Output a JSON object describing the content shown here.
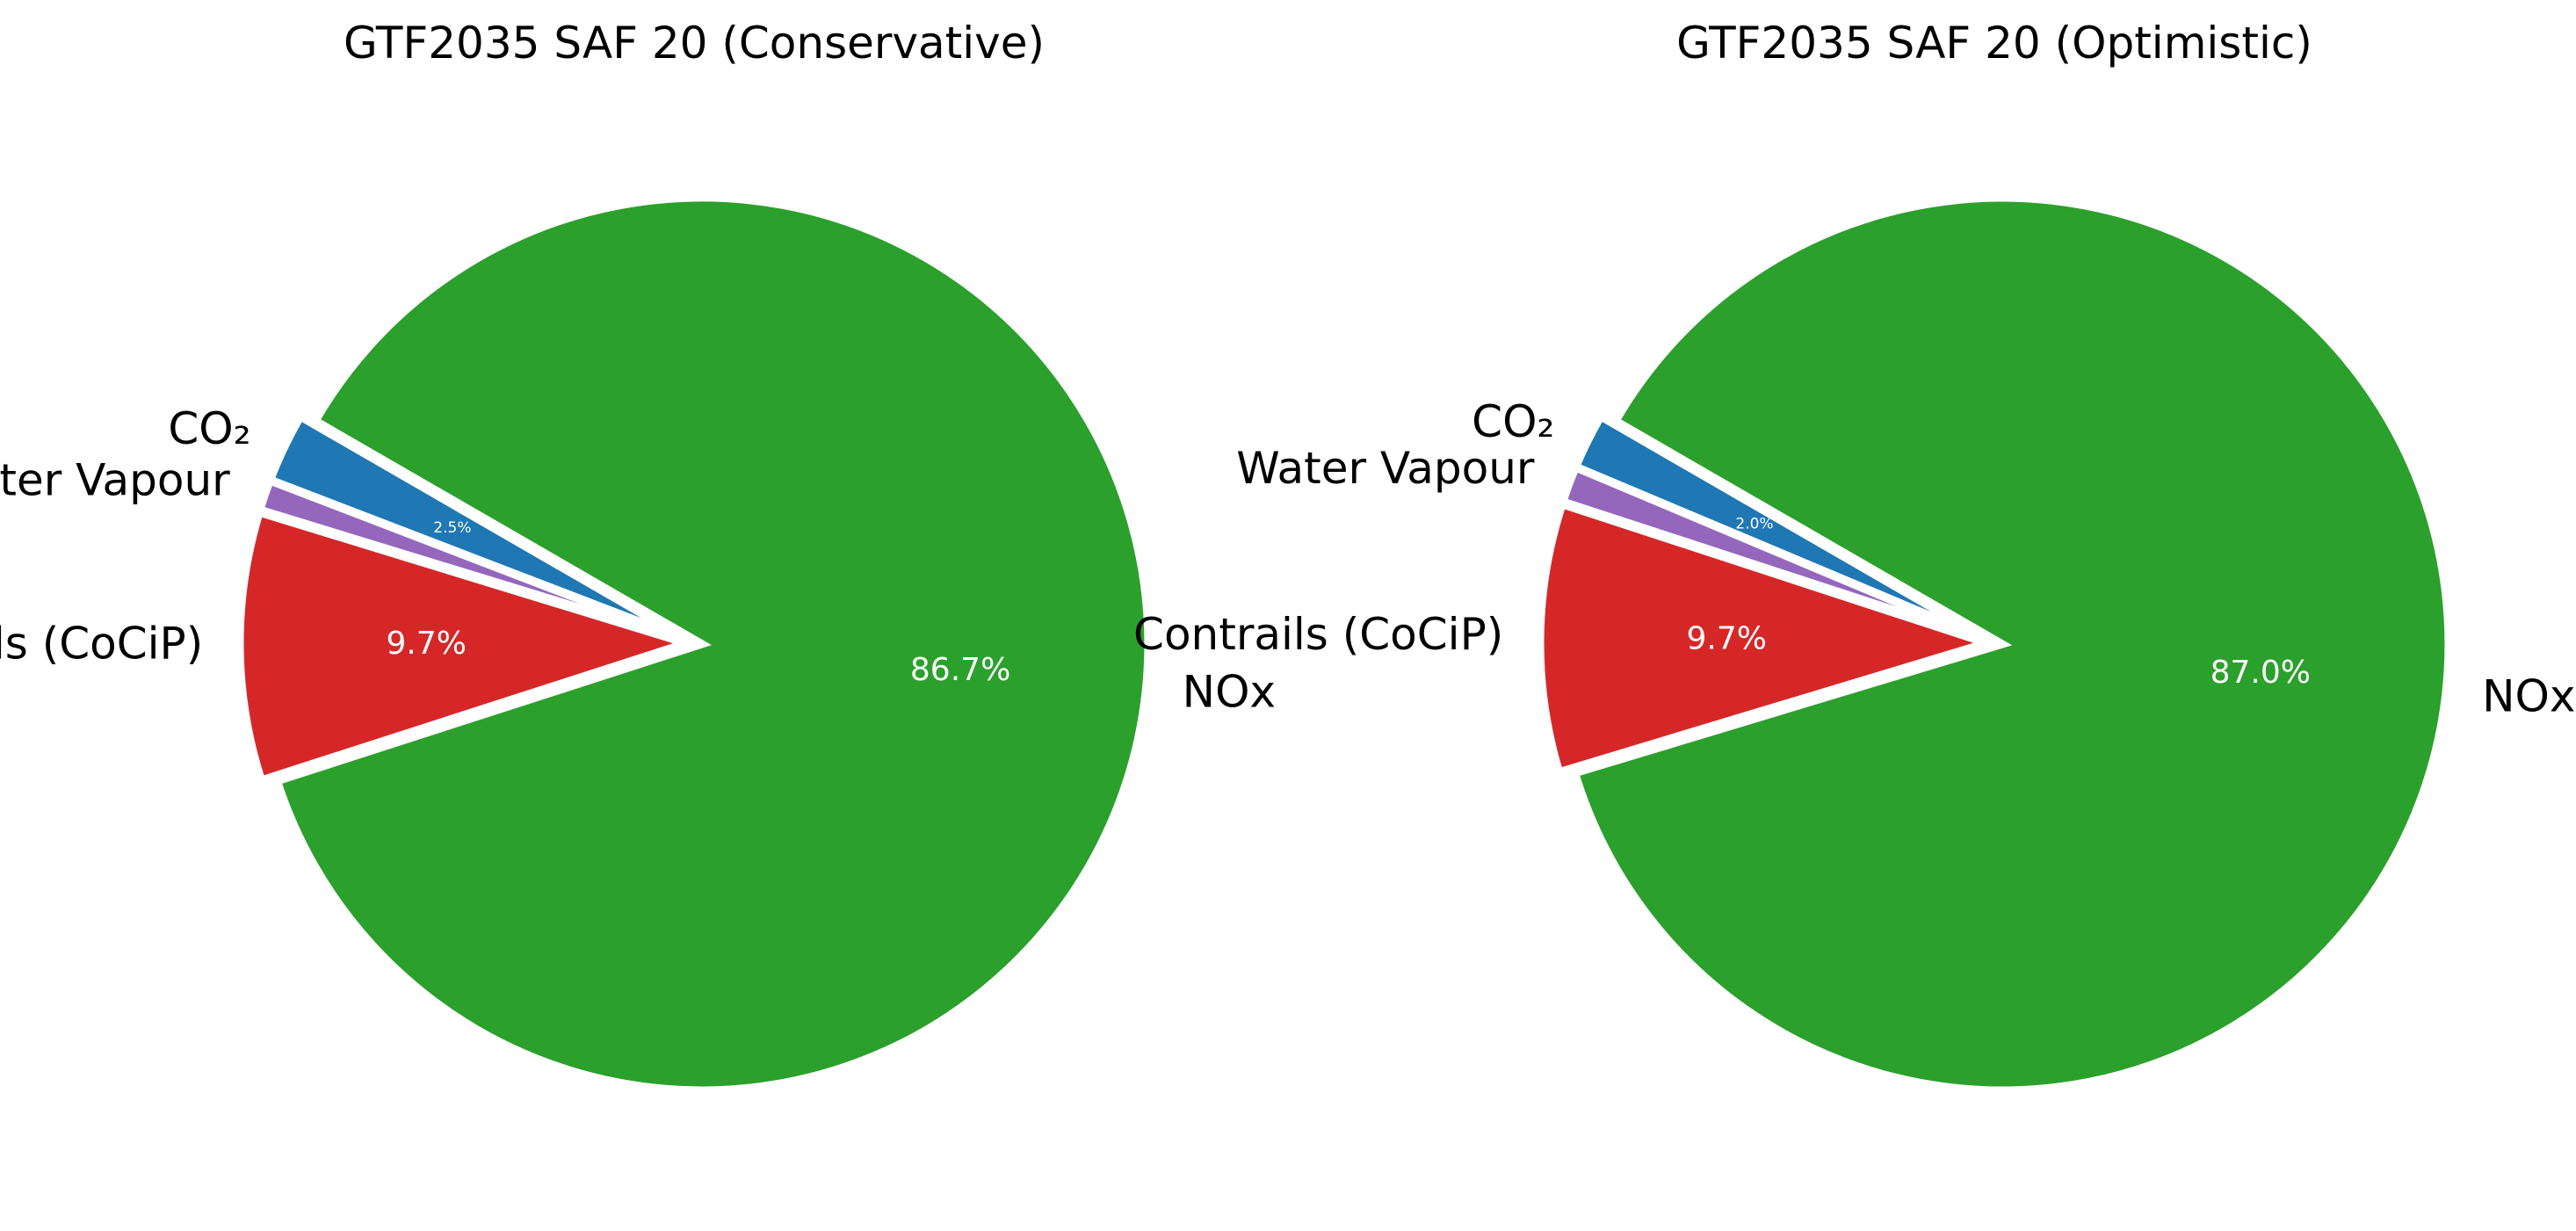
{
  "chart_data": [
    {
      "type": "pie",
      "title": "GTF2035 SAF 20 (Conservative)",
      "start_angle_deg": 150,
      "direction": "counterclockwise",
      "slices": [
        {
          "label": "CO₂",
          "value": 2.5,
          "pct_label": "2.5%",
          "color": "#1f77b4"
        },
        {
          "label": "Water Vapour",
          "value": 1.1,
          "pct_label": "",
          "color": "#9467bd"
        },
        {
          "label": "Contrails (CoCiP)",
          "value": 9.7,
          "pct_label": "9.7%",
          "color": "#d62728"
        },
        {
          "label": "NOx",
          "value": 86.7,
          "pct_label": "86.7%",
          "color": "#2ca02c"
        }
      ]
    },
    {
      "type": "pie",
      "title": "GTF2035 SAF 20 (Optimistic)",
      "start_angle_deg": 150,
      "direction": "counterclockwise",
      "slices": [
        {
          "label": "CO₂",
          "value": 2.0,
          "pct_label": "2.0%",
          "color": "#1f77b4"
        },
        {
          "label": "Water Vapour",
          "value": 1.3,
          "pct_label": "",
          "color": "#9467bd"
        },
        {
          "label": "Contrails (CoCiP)",
          "value": 9.7,
          "pct_label": "9.7%",
          "color": "#d62728"
        },
        {
          "label": "NOx",
          "value": 87.0,
          "pct_label": "87.0%",
          "color": "#2ca02c"
        }
      ]
    }
  ]
}
